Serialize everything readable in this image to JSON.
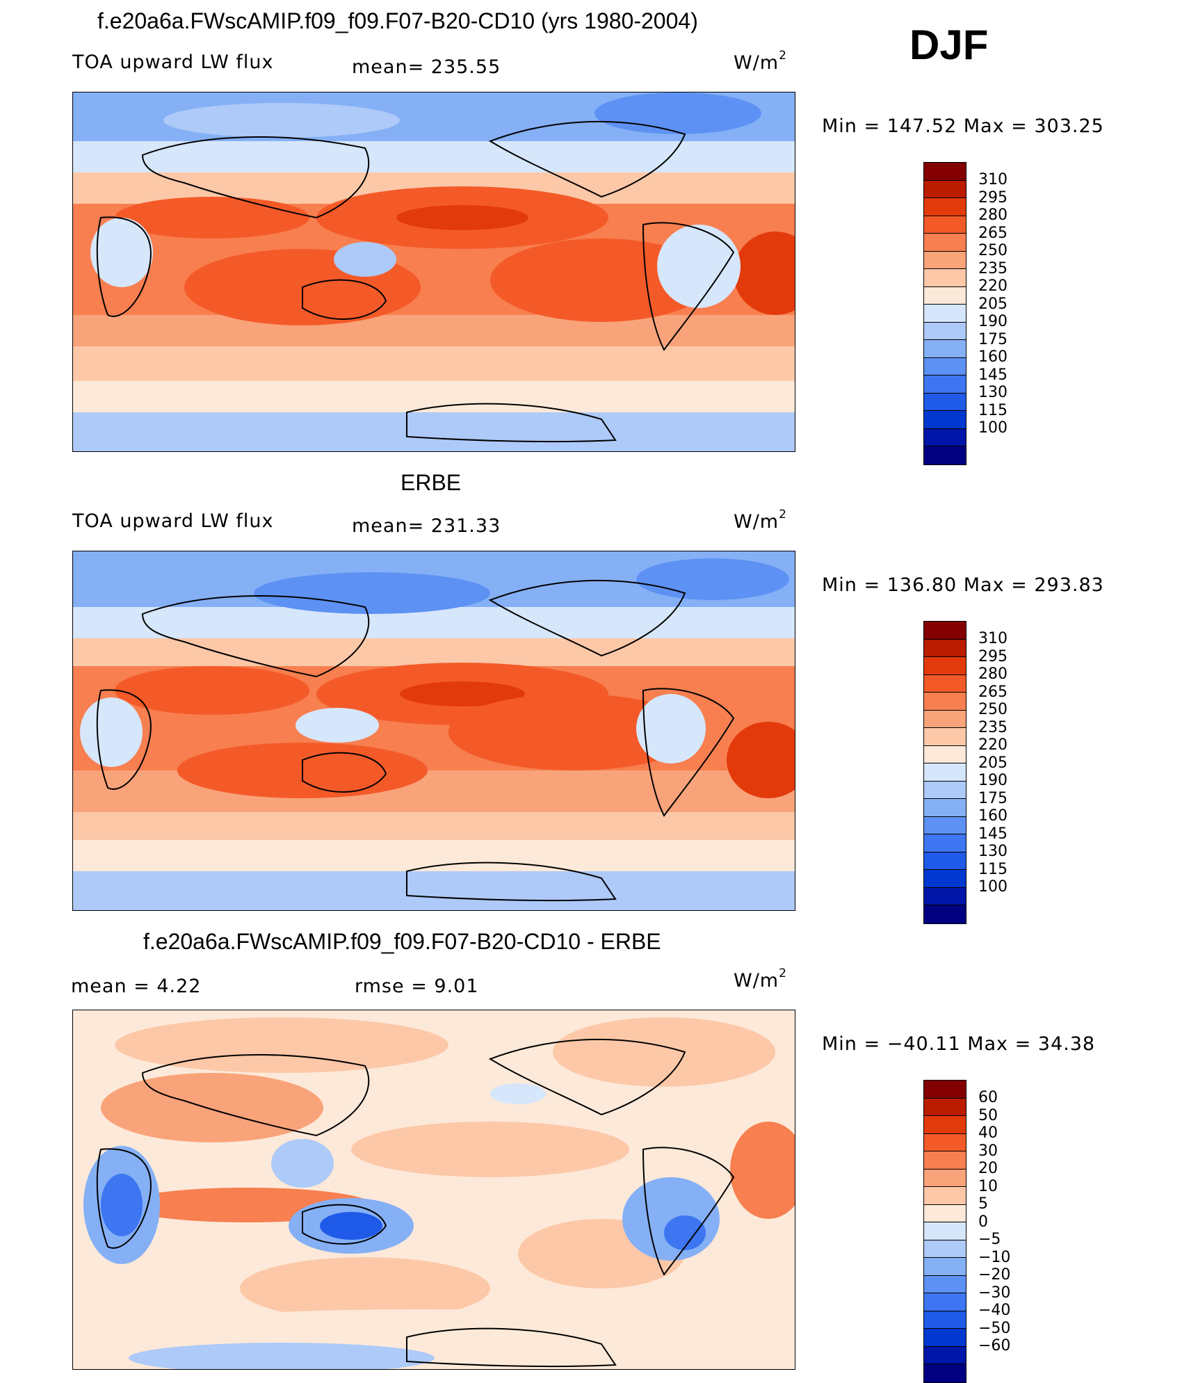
{
  "season": "DJF",
  "colors": {
    "main_scale": [
      "#000080",
      "#0016a8",
      "#0038d0",
      "#1f5ae8",
      "#3d76f0",
      "#5d92f4",
      "#85b0f6",
      "#adcaf8",
      "#d6e6fb",
      "#fde9d9",
      "#fcc8a8",
      "#f9a37a",
      "#f77f50",
      "#f45a28",
      "#e33a0c",
      "#bb1c00",
      "#820000"
    ],
    "diff_scale": [
      "#000080",
      "#0016a8",
      "#0038d0",
      "#1f5ae8",
      "#3d76f0",
      "#5d92f4",
      "#85b0f6",
      "#adcaf8",
      "#d6e6fb",
      "#fde9d9",
      "#fcc8a8",
      "#f9a37a",
      "#f77f50",
      "#f45a28",
      "#e33a0c",
      "#bb1c00",
      "#820000"
    ]
  },
  "panels": [
    {
      "title": "f.e20a6a.FWscAMIP.f09_f09.F07-B20-CD10 (yrs 1980-2004)",
      "left_label": "TOA upward LW flux",
      "mid_label": "mean=  235.55",
      "unit": "W/m",
      "unit_sup": "2",
      "minmax": "Min  =  147.52  Max  =  303.25",
      "ticks": [
        "310",
        "295",
        "280",
        "265",
        "250",
        "235",
        "220",
        "205",
        "190",
        "175",
        "160",
        "145",
        "130",
        "115",
        "100"
      ]
    },
    {
      "title": "ERBE",
      "left_label": "TOA upward LW flux",
      "mid_label": "mean=  231.33",
      "unit": "W/m",
      "unit_sup": "2",
      "minmax": "Min  =  136.80  Max  =  293.83",
      "ticks": [
        "310",
        "295",
        "280",
        "265",
        "250",
        "235",
        "220",
        "205",
        "190",
        "175",
        "160",
        "145",
        "130",
        "115",
        "100"
      ]
    },
    {
      "title": "f.e20a6a.FWscAMIP.f09_f09.F07-B20-CD10 - ERBE",
      "left_label": "mean  =     4.22",
      "mid_label": "rmse  =     9.01",
      "unit": "W/m",
      "unit_sup": "2",
      "minmax": "Min  =  −40.11  Max  =    34.38",
      "ticks": [
        "60",
        "50",
        "40",
        "30",
        "20",
        "10",
        "5",
        "0",
        "−5",
        "−10",
        "−20",
        "−30",
        "−40",
        "−50",
        "−60"
      ]
    }
  ]
}
